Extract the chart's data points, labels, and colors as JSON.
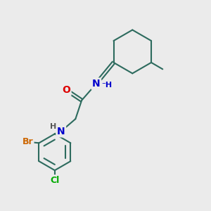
{
  "bg_color": "#ebebeb",
  "bond_color": "#2d6b5e",
  "bond_width": 1.5,
  "atom_colors": {
    "O": "#dd0000",
    "N": "#0000cc",
    "Br": "#cc6600",
    "Cl": "#00aa00",
    "H": "#555555",
    "C": "#2d6b5e"
  },
  "font_size": 9,
  "figsize": [
    3.0,
    3.0
  ],
  "dpi": 100
}
